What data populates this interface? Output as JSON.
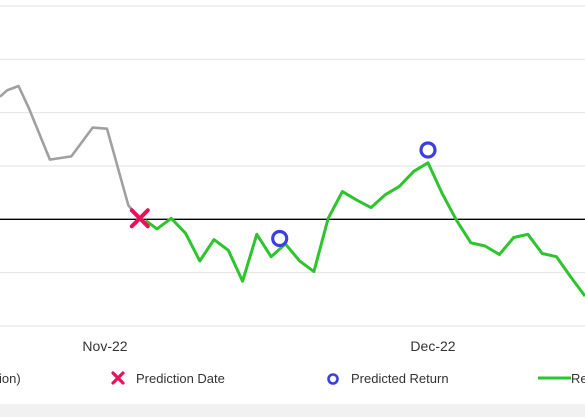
{
  "chart_data": {
    "type": "line",
    "x_tick_labels": [
      "Nov-22",
      "Dec-22"
    ],
    "grid": true,
    "reference_line": "horizontal baseline",
    "series": [
      {
        "name": "",
        "role": "price history",
        "color": "#a0a0a0",
        "points": [
          [
            -2,
            0.575
          ],
          [
            -1.5,
            0.605
          ],
          [
            -0.7,
            0.625
          ],
          [
            0,
            0.525
          ],
          [
            1.5,
            0.28
          ],
          [
            3,
            0.295
          ],
          [
            4.5,
            0.43
          ],
          [
            5.5,
            0.425
          ],
          [
            7,
            0.065
          ],
          [
            7.8,
            0.005
          ]
        ]
      },
      {
        "name": "",
        "role": "realized return",
        "color": "#2ec42e",
        "points": [
          [
            8.2,
            -0.005
          ],
          [
            9,
            -0.045
          ],
          [
            10,
            0.005
          ],
          [
            11,
            -0.065
          ],
          [
            12,
            -0.195
          ],
          [
            13,
            -0.095
          ],
          [
            14,
            -0.145
          ],
          [
            15,
            -0.29
          ],
          [
            16,
            -0.07
          ],
          [
            17,
            -0.175
          ],
          [
            18,
            -0.115
          ],
          [
            19,
            -0.195
          ],
          [
            20,
            -0.245
          ],
          [
            21,
            0.005
          ],
          [
            22,
            0.13
          ],
          [
            23,
            0.09
          ],
          [
            24,
            0.055
          ],
          [
            25,
            0.115
          ],
          [
            26,
            0.155
          ],
          [
            27,
            0.225
          ],
          [
            28,
            0.265
          ],
          [
            29,
            0.12
          ],
          [
            30,
            -0.005
          ],
          [
            31,
            -0.11
          ],
          [
            32,
            -0.125
          ],
          [
            33,
            -0.165
          ],
          [
            34,
            -0.085
          ],
          [
            35,
            -0.07
          ],
          [
            36,
            -0.16
          ],
          [
            37,
            -0.175
          ],
          [
            38,
            -0.27
          ],
          [
            39,
            -0.36
          ]
        ]
      }
    ],
    "prediction_date": {
      "x": 7.8,
      "y": 0.005
    },
    "predicted_returns": [
      {
        "x": 17.6,
        "y": -0.09
      },
      {
        "x": 28,
        "y": 0.325
      }
    ],
    "x_range": [
      -2,
      39
    ],
    "y_range": [
      -0.5,
      1.0
    ]
  },
  "legend": {
    "history_label": "ion)",
    "prediction_label": "Prediction Date",
    "predicted_label": "Predicted Return",
    "return_label": "Re"
  },
  "colors": {
    "history": "#a0a0a0",
    "returns": "#2ec42e",
    "prediction_marker": "#e8115b",
    "predicted_marker": "#3b3fe0",
    "baseline": "#000000",
    "grid": "#e2e2e2"
  }
}
